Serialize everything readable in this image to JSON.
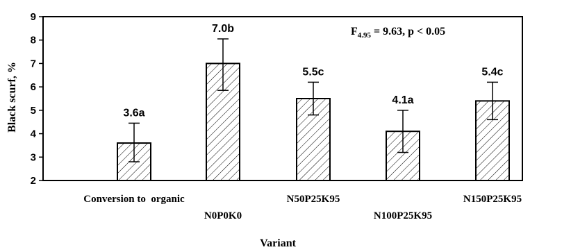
{
  "chart_data": {
    "type": "bar",
    "categories": [
      "Conversion to  organic",
      "N0P0K0",
      "N50P25K95",
      "N100P25K95",
      "N150P25K95"
    ],
    "values": [
      3.6,
      7.0,
      5.5,
      4.1,
      5.4
    ],
    "error_low": [
      2.8,
      5.85,
      4.8,
      3.2,
      4.6
    ],
    "error_high": [
      4.45,
      8.05,
      6.2,
      5.0,
      6.2
    ],
    "bar_labels": [
      "3.6a",
      "7.0b",
      "5.5c",
      "4.1a",
      "5.4c"
    ],
    "xlabel": "Variant",
    "ylabel": "Black scurf, %",
    "ylim": [
      2,
      9
    ],
    "yticks": [
      2,
      3,
      4,
      5,
      6,
      7,
      8,
      9
    ],
    "grid": false,
    "bar_fill": "hatched",
    "annotation": {
      "prefix": "F",
      "subscript": "4.95",
      "text": " = 9.63, p < 0.05"
    }
  }
}
